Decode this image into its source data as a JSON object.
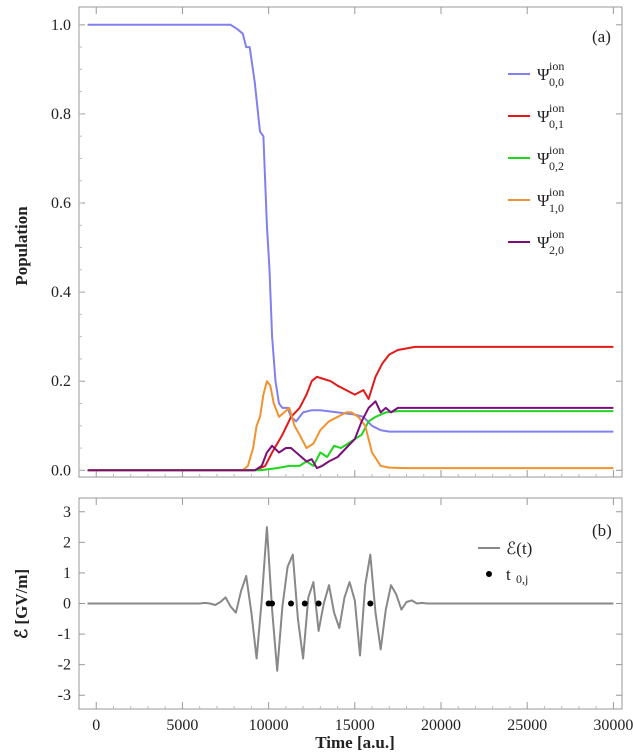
{
  "chart_data": [
    {
      "type": "line",
      "panel": "(a)",
      "xlabel": "",
      "ylabel": "Population",
      "xlim": [
        -1000,
        30500
      ],
      "ylim": [
        -0.015,
        1.04
      ],
      "xticks": [
        0,
        5000,
        10000,
        15000,
        20000,
        25000,
        30000
      ],
      "yticks": [
        0.0,
        0.2,
        0.4,
        0.6,
        0.8,
        1.0
      ],
      "ytick_labels": [
        "0.0",
        "0.2",
        "0.4",
        "0.6",
        "0.8",
        "1.0"
      ],
      "legend_position": "right",
      "series": [
        {
          "name": "Ψ0,0 ion",
          "label_base": "Ψ",
          "label_sup": "ion",
          "label_sub": "0,0",
          "color": "#8080f0",
          "x": [
            -500,
            7800,
            8200,
            8500,
            8700,
            8900,
            9200,
            9500,
            9700,
            9900,
            10050,
            10200,
            10400,
            10600,
            10800,
            11100,
            11300,
            11600,
            12000,
            12500,
            13000,
            14000,
            15000,
            15500,
            16000,
            16500,
            17000,
            18000,
            30000
          ],
          "y": [
            1.0,
            1.0,
            0.99,
            0.98,
            0.95,
            0.95,
            0.87,
            0.76,
            0.75,
            0.55,
            0.45,
            0.3,
            0.2,
            0.15,
            0.14,
            0.14,
            0.12,
            0.11,
            0.13,
            0.135,
            0.135,
            0.13,
            0.125,
            0.12,
            0.1,
            0.09,
            0.087,
            0.087,
            0.087
          ]
        },
        {
          "name": "Ψ0,1 ion",
          "label_base": "Ψ",
          "label_sup": "ion",
          "label_sub": "0,1",
          "color": "#e21a1a",
          "x": [
            -500,
            9200,
            9800,
            10200,
            10800,
            11300,
            11800,
            12200,
            12500,
            12800,
            13200,
            13600,
            14000,
            14500,
            15000,
            15500,
            15800,
            16200,
            16600,
            17000,
            17500,
            18500,
            30000
          ],
          "y": [
            0.0,
            0.0,
            0.01,
            0.04,
            0.08,
            0.12,
            0.14,
            0.17,
            0.2,
            0.21,
            0.205,
            0.2,
            0.19,
            0.18,
            0.17,
            0.18,
            0.16,
            0.21,
            0.24,
            0.26,
            0.27,
            0.277,
            0.277
          ]
        },
        {
          "name": "Ψ0,2 ion",
          "label_base": "Ψ",
          "label_sup": "ion",
          "label_sub": "0,2",
          "color": "#1ed61e",
          "x": [
            -500,
            9500,
            10500,
            11200,
            11800,
            12200,
            12600,
            13000,
            13400,
            13800,
            14200,
            14600,
            15000,
            15400,
            15800,
            16200,
            16800,
            17500,
            30000
          ],
          "y": [
            0.0,
            0.0,
            0.005,
            0.01,
            0.01,
            0.02,
            0.01,
            0.04,
            0.03,
            0.055,
            0.05,
            0.06,
            0.07,
            0.08,
            0.11,
            0.12,
            0.13,
            0.133,
            0.133
          ]
        },
        {
          "name": "Ψ1,0 ion",
          "label_base": "Ψ",
          "label_sup": "ion",
          "label_sub": "1,0",
          "color": "#f0922e",
          "x": [
            -500,
            8500,
            8800,
            9100,
            9300,
            9500,
            9700,
            9900,
            10100,
            10300,
            10600,
            10900,
            11200,
            11500,
            11800,
            12200,
            12600,
            13000,
            13500,
            14000,
            14500,
            14800,
            15200,
            15600,
            16000,
            16500,
            17000,
            18000,
            30000
          ],
          "y": [
            0.0,
            0.0,
            0.01,
            0.05,
            0.1,
            0.12,
            0.17,
            0.2,
            0.19,
            0.15,
            0.12,
            0.13,
            0.14,
            0.1,
            0.08,
            0.05,
            0.06,
            0.09,
            0.11,
            0.12,
            0.13,
            0.13,
            0.12,
            0.1,
            0.04,
            0.01,
            0.006,
            0.005,
            0.005
          ]
        },
        {
          "name": "Ψ2,0 ion",
          "label_base": "Ψ",
          "label_sup": "ion",
          "label_sub": "2,0",
          "color": "#7b0e7b",
          "x": [
            -500,
            9200,
            9600,
            9900,
            10200,
            10600,
            11000,
            11300,
            11600,
            11900,
            12200,
            12500,
            12800,
            13100,
            13500,
            14000,
            14500,
            15000,
            15400,
            15800,
            16200,
            16500,
            16800,
            17100,
            17500,
            18000,
            30000
          ],
          "y": [
            0.0,
            0.0,
            0.01,
            0.04,
            0.055,
            0.04,
            0.05,
            0.05,
            0.04,
            0.03,
            0.02,
            0.025,
            0.005,
            0.01,
            0.02,
            0.03,
            0.05,
            0.07,
            0.11,
            0.14,
            0.155,
            0.13,
            0.14,
            0.13,
            0.14,
            0.14,
            0.14
          ]
        }
      ]
    },
    {
      "type": "line",
      "panel": "(b)",
      "xlabel": "Time [a.u.]",
      "ylabel": "ℰ [GV/m]",
      "xlim": [
        -1000,
        30500
      ],
      "ylim": [
        -3.45,
        3.45
      ],
      "xticks": [
        0,
        5000,
        10000,
        15000,
        20000,
        25000,
        30000
      ],
      "xtick_labels": [
        "0",
        "5000",
        "10000",
        "15000",
        "20000",
        "25000",
        "30000"
      ],
      "yticks": [
        -3,
        -2,
        -1,
        0,
        1,
        2,
        3
      ],
      "ytick_labels": [
        "-3",
        "-2",
        "-1",
        "0",
        "1",
        "2",
        "3"
      ],
      "legend_position": "top-right",
      "series": [
        {
          "name": "ℰ(t)",
          "color": "#888888",
          "x": [
            -500,
            6000,
            6300,
            6600,
            6900,
            7200,
            7500,
            7800,
            8100,
            8400,
            8700,
            9000,
            9300,
            9600,
            9900,
            10200,
            10500,
            10800,
            11100,
            11400,
            11700,
            12000,
            12300,
            12600,
            12900,
            13200,
            13500,
            13800,
            14100,
            14400,
            14700,
            15000,
            15300,
            15600,
            15900,
            16200,
            16500,
            16800,
            17100,
            17400,
            17700,
            18000,
            18300,
            18600,
            18900,
            19200,
            19500,
            30000
          ],
          "y": [
            0,
            0,
            0.02,
            0,
            -0.05,
            0.05,
            0.2,
            -0.1,
            -0.3,
            0.4,
            0.9,
            -0.3,
            -1.8,
            0.1,
            2.5,
            -0.2,
            -2.2,
            -0.1,
            1.2,
            1.6,
            -0.5,
            -1.8,
            0.2,
            0.7,
            -0.9,
            0,
            0.6,
            -0.3,
            -0.8,
            0.2,
            0.7,
            0.1,
            -1.7,
            0.6,
            1.6,
            -0.3,
            -1.5,
            -0.2,
            0.6,
            0.3,
            -0.2,
            0.05,
            0.1,
            0,
            0.02,
            0,
            0,
            0
          ]
        },
        {
          "name": "t0,j",
          "label_base": "t",
          "label_sub": "0,j",
          "color": "#000000",
          "markers": true,
          "x": [
            10000,
            10200,
            11300,
            12100,
            12900,
            15900
          ],
          "y": [
            0,
            0,
            0,
            0,
            0,
            0
          ]
        }
      ]
    }
  ]
}
